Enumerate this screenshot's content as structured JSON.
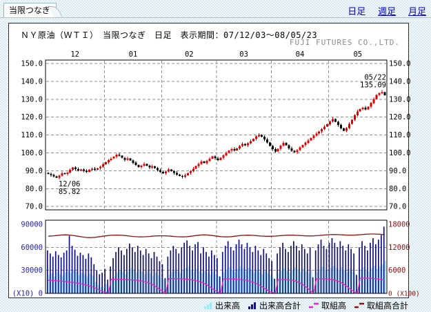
{
  "tab": {
    "label": "当限つなぎ"
  },
  "nav": {
    "items": [
      {
        "label": "日足",
        "current": true
      },
      {
        "label": "週足",
        "current": false
      },
      {
        "label": "月足",
        "current": false
      }
    ]
  },
  "header": {
    "title": "ＮＹ原油（ＷＴＩ）　当限つなぎ　日足　表示期間：07/12/03～08/05/23",
    "company": "FUJI FUTURES CO.,LTD."
  },
  "legend": {
    "items": [
      {
        "label": "出来高",
        "type": "bars",
        "color": "#9feaf6"
      },
      {
        "label": "出来高合計",
        "type": "bars",
        "color": "#10107e"
      },
      {
        "label": "取組高",
        "type": "line",
        "color": "#ee22cc"
      },
      {
        "label": "取組高合計",
        "type": "line",
        "color": "#8b1111"
      }
    ]
  },
  "chart_data": [
    {
      "type": "candlestick",
      "title": "ＮＹ原油（ＷＴＩ） 当限つなぎ 日足",
      "period": "07/12/03～08/05/23",
      "x_month_labels": [
        "12",
        "01",
        "02",
        "03",
        "04",
        "05"
      ],
      "month_boundary_days": [
        20.5,
        41.5,
        61.5,
        81.5,
        102.5
      ],
      "y_ticks": [
        150,
        140,
        130,
        120,
        110,
        100,
        90,
        80,
        70
      ],
      "ylim": [
        70,
        150
      ],
      "grid": true,
      "up_color": "#de0000",
      "down_color": "#000000",
      "first_open": 88.8,
      "annotations": [
        {
          "day": 3,
          "type": "low",
          "date": "12/06",
          "value": 85.82
        },
        {
          "day": 122,
          "type": "high",
          "date": "05/22",
          "value": 135.09
        }
      ],
      "closes": [
        88.3,
        87.6,
        86.9,
        86.1,
        87.3,
        88.6,
        88.2,
        89.0,
        90.5,
        91.8,
        91.0,
        90.2,
        90.8,
        90.0,
        89.4,
        90.6,
        91.2,
        90.6,
        91.4,
        92.3,
        93.6,
        94.8,
        95.9,
        96.8,
        97.9,
        99.1,
        98.4,
        97.2,
        96.1,
        96.9,
        95.8,
        94.5,
        93.2,
        92.0,
        92.9,
        93.8,
        92.8,
        91.8,
        92.5,
        91.5,
        90.4,
        89.4,
        88.6,
        89.5,
        90.7,
        89.8,
        88.8,
        87.9,
        87.1,
        86.6,
        87.5,
        88.7,
        89.8,
        91.2,
        92.6,
        93.9,
        95.2,
        94.3,
        95.5,
        96.8,
        98.1,
        97.0,
        96.0,
        97.3,
        98.6,
        99.9,
        101.3,
        102.2,
        101.4,
        102.6,
        103.8,
        105.1,
        104.2,
        105.4,
        106.6,
        107.9,
        109.2,
        110.1,
        109.0,
        107.5,
        105.8,
        103.9,
        102.1,
        100.8,
        102.3,
        104.1,
        105.6,
        104.3,
        102.6,
        101.2,
        100.4,
        101.6,
        103.0,
        104.4,
        105.7,
        107.0,
        108.3,
        109.6,
        110.8,
        112.0,
        113.3,
        114.7,
        116.1,
        117.6,
        119.0,
        117.4,
        115.6,
        113.8,
        112.4,
        113.9,
        116.2,
        118.6,
        121.0,
        123.2,
        124.6,
        125.3,
        124.4,
        125.8,
        127.9,
        130.2,
        132.5,
        133.4,
        133.9,
        132.3
      ]
    },
    {
      "type": "bar",
      "left_ticks": [
        90000,
        60000,
        30000,
        0
      ],
      "left_unit": "(X10)",
      "left_color": "#2222bb",
      "left_max": 90000,
      "right_ticks": [
        18000,
        12000,
        6000,
        0
      ],
      "right_unit": "(X100)",
      "right_color": "#8b1111",
      "right_max": 18000,
      "gridlines": [
        60000,
        30000
      ],
      "series": [
        {
          "name": "出来高",
          "type": "bar",
          "color": "#9feaf6",
          "values": [
            24000,
            26000,
            22000,
            28000,
            25000,
            23000,
            27000,
            29000,
            26000,
            31000,
            28000,
            24000,
            27000,
            25000,
            22000,
            26000,
            23000,
            15000,
            11000,
            8000,
            9000,
            12000,
            4000,
            16000,
            22000,
            27000,
            30000,
            28000,
            25000,
            29000,
            33000,
            30000,
            27000,
            31000,
            28000,
            25000,
            29000,
            26000,
            23000,
            27000,
            24000,
            21000,
            18000,
            5000,
            24000,
            28000,
            31000,
            29000,
            26000,
            30000,
            33000,
            35000,
            31000,
            28000,
            32000,
            29000,
            26000,
            30000,
            27000,
            24000,
            28000,
            25000,
            23000,
            5000,
            27000,
            31000,
            34000,
            30000,
            28000,
            32000,
            35000,
            32000,
            29000,
            33000,
            30000,
            27000,
            31000,
            28000,
            25000,
            29000,
            26000,
            23000,
            21000,
            4000,
            26000,
            30000,
            33000,
            29000,
            27000,
            31000,
            34000,
            31000,
            28000,
            32000,
            29000,
            26000,
            30000,
            5000,
            28000,
            32000,
            35000,
            31000,
            29000,
            33000,
            36000,
            33000,
            30000,
            34000,
            31000,
            28000,
            32000,
            29000,
            26000,
            6000,
            30000,
            34000,
            31000,
            28000,
            33000,
            36000,
            32000,
            35000,
            38000,
            42000
          ]
        },
        {
          "name": "出来高合計",
          "type": "bar",
          "color": "#10107e",
          "values": [
            56000,
            52000,
            48000,
            55000,
            50000,
            47000,
            53000,
            56000,
            75000,
            62000,
            57000,
            49000,
            53000,
            50000,
            45000,
            52000,
            47000,
            38000,
            30000,
            25000,
            27000,
            32000,
            18000,
            35000,
            46000,
            54000,
            60000,
            56000,
            50000,
            58000,
            65000,
            60000,
            54000,
            62000,
            56000,
            50000,
            58000,
            52000,
            46000,
            54000,
            48000,
            42000,
            38000,
            20000,
            48000,
            56000,
            62000,
            58000,
            52000,
            60000,
            66000,
            69000,
            62000,
            56000,
            64000,
            67000,
            52000,
            60000,
            54000,
            48000,
            56000,
            50000,
            46000,
            22000,
            54000,
            62000,
            68000,
            60000,
            56000,
            64000,
            70000,
            64000,
            58000,
            66000,
            60000,
            54000,
            62000,
            56000,
            50000,
            58000,
            52000,
            46000,
            42000,
            19000,
            52000,
            60000,
            66000,
            58000,
            54000,
            62000,
            68000,
            62000,
            56000,
            64000,
            58000,
            52000,
            60000,
            21000,
            56000,
            64000,
            70000,
            62000,
            58000,
            66000,
            72000,
            66000,
            60000,
            68000,
            62000,
            56000,
            64000,
            58000,
            52000,
            24000,
            60000,
            68000,
            62000,
            56000,
            66000,
            72000,
            64000,
            70000,
            76000,
            87000
          ]
        },
        {
          "name": "取組高",
          "type": "line",
          "color": "#ee22cc",
          "values": [
            17100,
            16900,
            16700,
            16500,
            16200,
            15900,
            15600,
            15200,
            14800,
            14300,
            13800,
            13200,
            12500,
            11700,
            10800,
            9800,
            8600,
            7200,
            5600,
            3800,
            2400,
            1200,
            500,
            18200,
            18400,
            18500,
            18400,
            18300,
            18100,
            17900,
            17700,
            17400,
            17100,
            16700,
            16200,
            15500,
            14500,
            13200,
            11500,
            9400,
            7000,
            4500,
            2200,
            800,
            19000,
            19200,
            19300,
            19200,
            19000,
            18800,
            18500,
            18200,
            17800,
            17300,
            16600,
            15700,
            14500,
            13000,
            11000,
            8600,
            6000,
            3600,
            1700,
            600,
            18600,
            18800,
            18900,
            18800,
            18600,
            18400,
            18100,
            17700,
            17200,
            16500,
            15600,
            14400,
            12900,
            11100,
            9000,
            6700,
            4400,
            2400,
            1100,
            500,
            17800,
            18000,
            18100,
            18000,
            17700,
            17200,
            16400,
            15200,
            13600,
            11500,
            8900,
            5900,
            2900,
            800,
            18800,
            19000,
            19100,
            19000,
            18800,
            18400,
            17800,
            16900,
            15700,
            14100,
            12000,
            9500,
            6700,
            4000,
            1800,
            600,
            19600,
            19800,
            19900,
            19800,
            19600,
            19300,
            18900,
            18400,
            17800,
            17200
          ]
        },
        {
          "name": "取組高合計",
          "type": "line",
          "color": "#8b1111",
          "values": [
            74500,
            74800,
            75100,
            75400,
            75800,
            76100,
            76300,
            76200,
            75900,
            75500,
            75000,
            74400,
            73800,
            73300,
            72900,
            72700,
            72800,
            73100,
            73500,
            74000,
            74500,
            75000,
            75400,
            75700,
            75900,
            76000,
            75900,
            75700,
            75400,
            75000,
            74600,
            74200,
            73900,
            73700,
            73600,
            73700,
            73900,
            74200,
            74500,
            74800,
            75000,
            75100,
            75100,
            75000,
            74800,
            74500,
            74200,
            73900,
            73700,
            73600,
            73700,
            74000,
            74400,
            74900,
            75400,
            75800,
            76100,
            76200,
            76100,
            75800,
            75400,
            74900,
            74400,
            74000,
            73700,
            73600,
            73700,
            74000,
            74400,
            74900,
            75300,
            75600,
            75800,
            75900,
            75800,
            75600,
            75300,
            75000,
            74700,
            74500,
            74400,
            74400,
            74500,
            74700,
            75000,
            75300,
            75600,
            75800,
            75900,
            75900,
            75800,
            75600,
            75400,
            75200,
            75000,
            74900,
            74900,
            75000,
            75200,
            75500,
            75800,
            76100,
            76400,
            76600,
            76700,
            76700,
            76600,
            76400,
            76200,
            76000,
            75900,
            75900,
            76000,
            76200,
            76500,
            76800,
            77100,
            77300,
            77400,
            77400,
            77300,
            77100,
            76800,
            76500
          ]
        }
      ]
    }
  ]
}
